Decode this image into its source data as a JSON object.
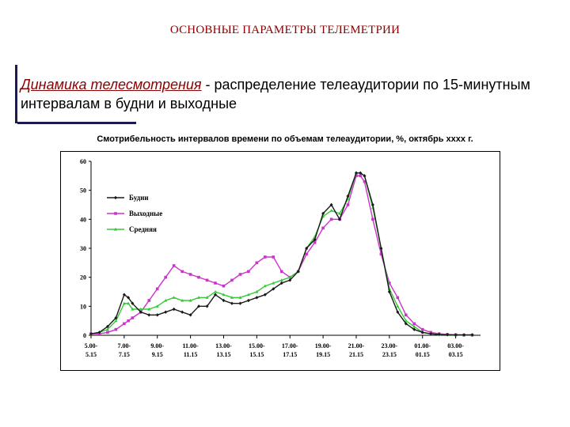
{
  "page": {
    "title": "ОСНОВНЫЕ ПАРАМЕТРЫ ТЕЛЕМЕТРИИ",
    "heading_highlight": "Динамика телесмотрения",
    "heading_rest": " - распределение телеаудитории по 15-минутным интервалам в будни и выходные",
    "subtitle": "Смотрибельность интервалов времени по объемам телеаудитории, %, октябрь хххх г."
  },
  "chart_data": {
    "type": "line",
    "title": "",
    "xlabel": "",
    "ylabel": "",
    "ylim": [
      0,
      60
    ],
    "yticks": [
      "0",
      "10",
      "20",
      "30",
      "40",
      "50",
      "60"
    ],
    "xticks": [
      [
        "5.00-",
        "5.15"
      ],
      [
        "7.00-",
        "7.15"
      ],
      [
        "9.00-",
        "9.15"
      ],
      [
        "11.00-",
        "11.15"
      ],
      [
        "13.00-",
        "13.15"
      ],
      [
        "15.00-",
        "15.15"
      ],
      [
        "17.00-",
        "17.15"
      ],
      [
        "19.00-",
        "19.15"
      ],
      [
        "21.00-",
        "21.15"
      ],
      [
        "23.00-",
        "23.15"
      ],
      [
        "01.00-",
        "01.15"
      ],
      [
        "03.00-",
        "03.15"
      ]
    ],
    "x_hours": [
      5.0,
      5.5,
      6.0,
      6.5,
      7.0,
      7.25,
      7.5,
      8.0,
      8.5,
      9.0,
      9.5,
      10.0,
      10.5,
      11.0,
      11.5,
      12.0,
      12.5,
      13.0,
      13.5,
      14.0,
      14.5,
      15.0,
      15.5,
      16.0,
      16.5,
      17.0,
      17.5,
      18.0,
      18.5,
      19.0,
      19.5,
      20.0,
      20.5,
      21.0,
      21.25,
      21.5,
      22.0,
      22.5,
      23.0,
      23.5,
      24.0,
      24.5,
      25.0,
      25.5,
      26.0,
      26.5,
      27.0,
      27.5,
      28.0
    ],
    "legend_position": "upper-left",
    "grid": false,
    "series": [
      {
        "name": "Будни",
        "color": "#1a1a1a",
        "marker": "diamond",
        "values": [
          0.5,
          1,
          3,
          6,
          14,
          13,
          11,
          8,
          7,
          7,
          8,
          9,
          8,
          7,
          10,
          10,
          14,
          12,
          11,
          11,
          12,
          13,
          14,
          16,
          18,
          19,
          22,
          30,
          33,
          42,
          45,
          40,
          48,
          56,
          56,
          55,
          45,
          30,
          15,
          8,
          4,
          2,
          1,
          0.5,
          0.3,
          0.2,
          0.1,
          0.1,
          0.1
        ]
      },
      {
        "name": "Выходные",
        "color": "#cc33cc",
        "marker": "square",
        "values": [
          0.5,
          0.5,
          1,
          2,
          4,
          5,
          6,
          8,
          12,
          16,
          20,
          24,
          22,
          21,
          20,
          19,
          18,
          17,
          19,
          21,
          22,
          25,
          27,
          27,
          22,
          20,
          22,
          28,
          32,
          37,
          40,
          40,
          45,
          55,
          55,
          53,
          40,
          28,
          18,
          13,
          7,
          4,
          2,
          1,
          0.5,
          0.3,
          0.2,
          0.1,
          0.1
        ]
      },
      {
        "name": "Средняя",
        "color": "#33cc33",
        "marker": "triangle",
        "values": [
          0.5,
          1,
          2,
          5,
          11,
          11,
          9,
          9,
          9,
          10,
          12,
          13,
          12,
          12,
          13,
          13,
          15,
          14,
          13,
          13,
          14,
          15,
          17,
          18,
          19,
          20,
          22,
          30,
          34,
          41,
          43,
          42,
          47,
          56,
          56,
          55,
          44,
          30,
          16,
          10,
          5,
          3,
          1,
          0.5,
          0.3,
          0.2,
          0.1,
          0.1,
          0.1
        ]
      }
    ]
  }
}
